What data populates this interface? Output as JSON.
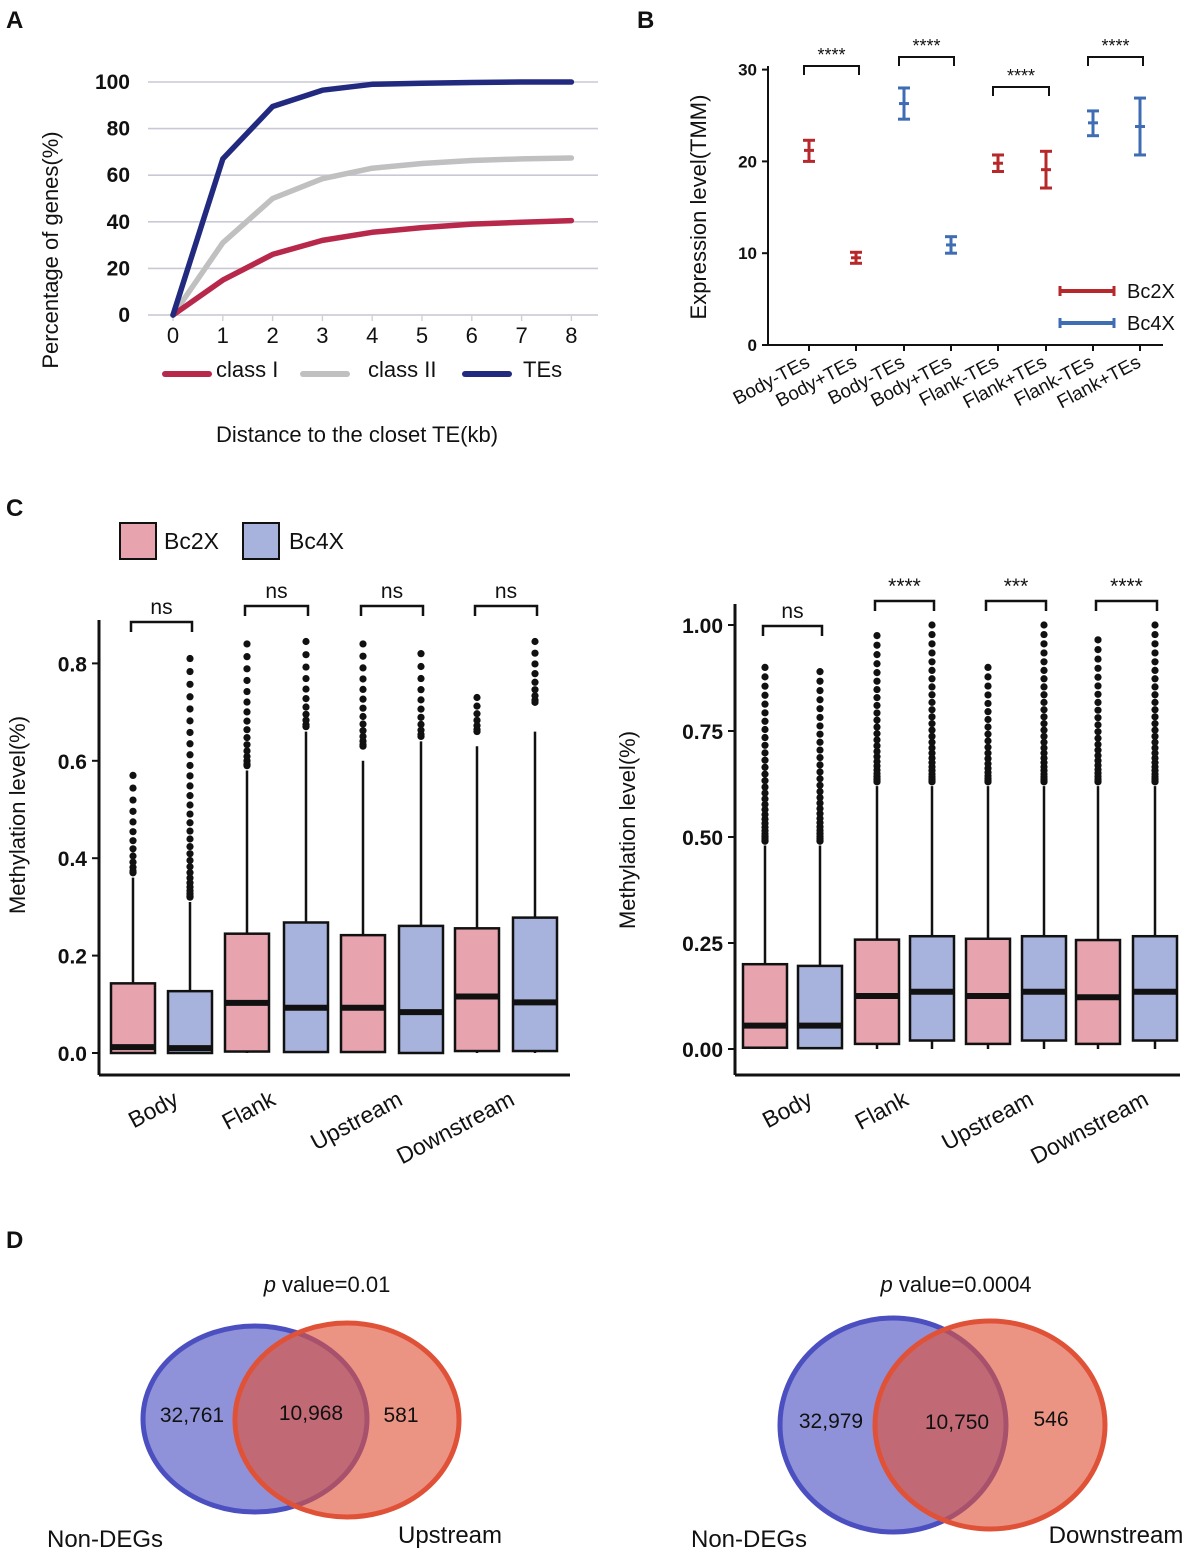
{
  "panels": {
    "A": "A",
    "B": "B",
    "C": "C",
    "D": "D"
  },
  "chart_data": [
    {
      "id": "A",
      "type": "line",
      "title": "",
      "xlabel": "Distance to the closet TE(kb)",
      "ylabel": "Percentage of genes(%)",
      "x": [
        0,
        1,
        2,
        3,
        4,
        5,
        6,
        7,
        8
      ],
      "xticks": [
        "0",
        "1",
        "2",
        "3",
        "4",
        "5",
        "6",
        "7",
        "8"
      ],
      "yticks": [
        "0",
        "20",
        "40",
        "60",
        "80",
        "100"
      ],
      "ylim": [
        0,
        100
      ],
      "grid": true,
      "series": [
        {
          "name": "class I",
          "color": "#b7284a",
          "values": [
            0,
            15,
            26,
            32,
            35.5,
            37.5,
            39,
            39.8,
            40.5
          ]
        },
        {
          "name": "class II",
          "color": "#c0c0c0",
          "values": [
            0,
            31,
            50,
            58.5,
            63,
            65,
            66.3,
            67,
            67.4
          ]
        },
        {
          "name": "TEs",
          "color": "#222a80",
          "values": [
            0,
            67,
            89.5,
            96.5,
            99,
            99.5,
            99.8,
            100,
            100
          ]
        }
      ]
    },
    {
      "id": "B",
      "type": "scatter",
      "title": "",
      "xlabel": "",
      "ylabel": "Expression level(TMM)",
      "ylim": [
        0,
        30
      ],
      "yticks": [
        "0",
        "10",
        "20",
        "30"
      ],
      "categories": [
        "Body-TEs",
        "Body+TEs",
        "Body-TEs",
        "Body+TEs",
        "Flank-TEs",
        "Flank+TEs",
        "Flank-TEs",
        "Flank+TEs"
      ],
      "points": [
        {
          "series": "Bc2X",
          "mean": 21.2,
          "low": 20.0,
          "high": 22.3
        },
        {
          "series": "Bc2X",
          "mean": 9.5,
          "low": 8.9,
          "high": 10.1
        },
        {
          "series": "Bc4X",
          "mean": 26.3,
          "low": 24.6,
          "high": 28.0
        },
        {
          "series": "Bc4X",
          "mean": 10.9,
          "low": 10.0,
          "high": 11.8
        },
        {
          "series": "Bc2X",
          "mean": 19.8,
          "low": 18.9,
          "high": 20.7
        },
        {
          "series": "Bc2X",
          "mean": 19.1,
          "low": 17.1,
          "high": 21.1
        },
        {
          "series": "Bc4X",
          "mean": 24.2,
          "low": 22.8,
          "high": 25.5
        },
        {
          "series": "Bc4X",
          "mean": 23.8,
          "low": 20.7,
          "high": 26.9
        }
      ],
      "legend": [
        {
          "name": "Bc2X",
          "color": "#b7282b"
        },
        {
          "name": "Bc4X",
          "color": "#3f6db4"
        }
      ],
      "significance": [
        {
          "pair": [
            0,
            1
          ],
          "label": "****"
        },
        {
          "pair": [
            2,
            3
          ],
          "label": "****"
        },
        {
          "pair": [
            4,
            5
          ],
          "label": "****"
        },
        {
          "pair": [
            6,
            7
          ],
          "label": "****"
        }
      ]
    },
    {
      "id": "C-left",
      "type": "box",
      "title": "",
      "ylabel": "Methylation level(%)",
      "ylim": [
        0,
        0.85
      ],
      "yticks": [
        "0.0",
        "0.2",
        "0.4",
        "0.6",
        "0.8"
      ],
      "categories": [
        "Body",
        "Flank",
        "Upstream",
        "Downstream"
      ],
      "legend": [
        {
          "name": "Bc2X",
          "color": "#e8a4ae"
        },
        {
          "name": "Bc4X",
          "color": "#a7b3dc"
        }
      ],
      "boxes": [
        {
          "cat": "Body",
          "series": "Bc2X",
          "q1": 0.0,
          "median": 0.012,
          "q3": 0.143,
          "whisker_high": 0.36,
          "outliers_from": 0.37,
          "outliers_to": 0.57
        },
        {
          "cat": "Body",
          "series": "Bc4X",
          "q1": 0.0,
          "median": 0.01,
          "q3": 0.127,
          "whisker_high": 0.31,
          "outliers_from": 0.32,
          "outliers_to": 0.81
        },
        {
          "cat": "Flank",
          "series": "Bc2X",
          "q1": 0.003,
          "median": 0.103,
          "q3": 0.245,
          "whisker_high": 0.58,
          "outliers_from": 0.59,
          "outliers_to": 0.84
        },
        {
          "cat": "Flank",
          "series": "Bc4X",
          "q1": 0.002,
          "median": 0.093,
          "q3": 0.268,
          "whisker_high": 0.66,
          "outliers_from": 0.67,
          "outliers_to": 0.845
        },
        {
          "cat": "Upstream",
          "series": "Bc2X",
          "q1": 0.002,
          "median": 0.093,
          "q3": 0.242,
          "whisker_high": 0.6,
          "outliers_from": 0.63,
          "outliers_to": 0.84
        },
        {
          "cat": "Upstream",
          "series": "Bc4X",
          "q1": 0.0,
          "median": 0.084,
          "q3": 0.261,
          "whisker_high": 0.64,
          "outliers_from": 0.65,
          "outliers_to": 0.82
        },
        {
          "cat": "Downstream",
          "series": "Bc2X",
          "q1": 0.004,
          "median": 0.116,
          "q3": 0.256,
          "whisker_high": 0.63,
          "outliers_from": 0.66,
          "outliers_to": 0.73
        },
        {
          "cat": "Downstream",
          "series": "Bc4X",
          "q1": 0.004,
          "median": 0.104,
          "q3": 0.278,
          "whisker_high": 0.66,
          "outliers_from": 0.72,
          "outliers_to": 0.845
        }
      ],
      "significance": [
        "ns",
        "ns",
        "ns",
        "ns"
      ]
    },
    {
      "id": "C-right",
      "type": "box",
      "title": "",
      "ylabel": "Methylation level(%)",
      "ylim": [
        0,
        1.0
      ],
      "yticks": [
        "0.00",
        "0.25",
        "0.50",
        "0.75",
        "1.00"
      ],
      "categories": [
        "Body",
        "Flank",
        "Upstream",
        "Downstream"
      ],
      "legend": [
        {
          "name": "Bc2X",
          "color": "#e8a4ae"
        },
        {
          "name": "Bc4X",
          "color": "#a7b3dc"
        }
      ],
      "boxes": [
        {
          "cat": "Body",
          "series": "Bc2X",
          "q1": 0.003,
          "median": 0.055,
          "q3": 0.2,
          "whisker_high": 0.48,
          "outliers_from": 0.49,
          "outliers_to": 0.9
        },
        {
          "cat": "Body",
          "series": "Bc4X",
          "q1": 0.002,
          "median": 0.055,
          "q3": 0.196,
          "whisker_high": 0.48,
          "outliers_from": 0.49,
          "outliers_to": 0.89
        },
        {
          "cat": "Flank",
          "series": "Bc2X",
          "q1": 0.012,
          "median": 0.125,
          "q3": 0.258,
          "whisker_high": 0.62,
          "outliers_from": 0.63,
          "outliers_to": 0.975
        },
        {
          "cat": "Flank",
          "series": "Bc4X",
          "q1": 0.02,
          "median": 0.135,
          "q3": 0.266,
          "whisker_high": 0.62,
          "outliers_from": 0.63,
          "outliers_to": 1.0
        },
        {
          "cat": "Upstream",
          "series": "Bc2X",
          "q1": 0.012,
          "median": 0.125,
          "q3": 0.26,
          "whisker_high": 0.62,
          "outliers_from": 0.63,
          "outliers_to": 0.9
        },
        {
          "cat": "Upstream",
          "series": "Bc4X",
          "q1": 0.02,
          "median": 0.135,
          "q3": 0.266,
          "whisker_high": 0.62,
          "outliers_from": 0.63,
          "outliers_to": 1.0
        },
        {
          "cat": "Downstream",
          "series": "Bc2X",
          "q1": 0.012,
          "median": 0.122,
          "q3": 0.257,
          "whisker_high": 0.62,
          "outliers_from": 0.63,
          "outliers_to": 0.965
        },
        {
          "cat": "Downstream",
          "series": "Bc4X",
          "q1": 0.02,
          "median": 0.135,
          "q3": 0.266,
          "whisker_high": 0.62,
          "outliers_from": 0.63,
          "outliers_to": 1.0
        }
      ],
      "significance": [
        "ns",
        "****",
        "***",
        "****"
      ]
    },
    {
      "id": "D-left",
      "type": "venn",
      "pvalue_prefix": "p",
      "pvalue_text": " value=0.01",
      "left_label": "Non-DEGs",
      "right_label": "Upstream",
      "left_only": "32,761",
      "overlap": "10,968",
      "right_only": "581",
      "left_color": "#4b4fc0",
      "right_color": "#e05238"
    },
    {
      "id": "D-right",
      "type": "venn",
      "pvalue_prefix": "p",
      "pvalue_text": " value=0.0004",
      "left_label": "Non-DEGs",
      "right_label": "Downstream",
      "left_only": "32,979",
      "overlap": "10,750",
      "right_only": "546",
      "left_color": "#4b4fc0",
      "right_color": "#e05238"
    }
  ]
}
